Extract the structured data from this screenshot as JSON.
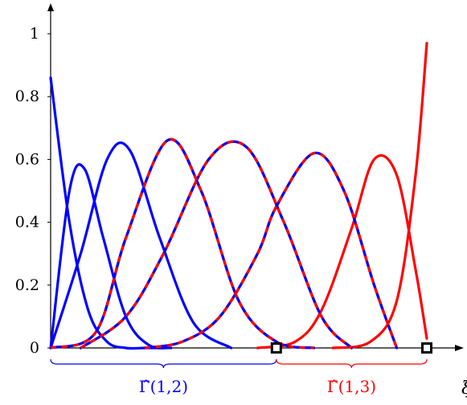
{
  "chart_data": {
    "type": "line",
    "title": "",
    "xlabel": "ξ",
    "ylabel": "",
    "xlim": [
      0,
      1
    ],
    "ylim": [
      0,
      1
    ],
    "y_ticks": [
      "0",
      "0.2",
      "0.4",
      "0.6",
      "0.8",
      "1"
    ],
    "y_tick_values": [
      0,
      0.2,
      0.4,
      0.6,
      0.8,
      1
    ],
    "grid": false,
    "colors": {
      "blue": "#0000ff",
      "red": "#ff0000",
      "axis": "#000000"
    },
    "blue_curves": [
      {
        "x": [
          0.0,
          0.05,
          0.1,
          0.15,
          0.2,
          0.25,
          0.3
        ],
        "y": [
          0.86,
          0.4,
          0.12,
          0.02,
          0.0,
          0.0,
          0.0
        ]
      },
      {
        "x": [
          0.0,
          0.05,
          0.09,
          0.14,
          0.2,
          0.26,
          0.32
        ],
        "y": [
          0.0,
          0.5,
          0.57,
          0.35,
          0.1,
          0.01,
          0.0
        ]
      },
      {
        "x": [
          0.0,
          0.08,
          0.15,
          0.21,
          0.29,
          0.38,
          0.48
        ],
        "y": [
          0.0,
          0.3,
          0.6,
          0.63,
          0.35,
          0.08,
          0.0
        ]
      },
      {
        "x": [
          0.0,
          0.12,
          0.2,
          0.31,
          0.4,
          0.5,
          0.6,
          0.7
        ],
        "y": [
          0.0,
          0.05,
          0.35,
          0.66,
          0.5,
          0.15,
          0.02,
          0.0
        ]
      },
      {
        "x": [
          0.08,
          0.2,
          0.3,
          0.42,
          0.52,
          0.62,
          0.72,
          0.8
        ],
        "y": [
          0.0,
          0.1,
          0.3,
          0.6,
          0.64,
          0.4,
          0.1,
          0.0
        ]
      },
      {
        "x": [
          0.25,
          0.35,
          0.45,
          0.55,
          0.6,
          0.7,
          0.78,
          0.86,
          0.92
        ],
        "y": [
          0.0,
          0.02,
          0.1,
          0.3,
          0.45,
          0.62,
          0.5,
          0.2,
          0.0
        ]
      }
    ],
    "red_curves": [
      {
        "x": [
          0.0,
          0.12,
          0.2,
          0.31,
          0.4,
          0.5,
          0.6,
          0.7
        ],
        "y": [
          0.0,
          0.05,
          0.35,
          0.66,
          0.5,
          0.15,
          0.02,
          0.0
        ]
      },
      {
        "x": [
          0.08,
          0.2,
          0.3,
          0.42,
          0.52,
          0.62,
          0.72,
          0.8
        ],
        "y": [
          0.0,
          0.1,
          0.3,
          0.6,
          0.64,
          0.4,
          0.1,
          0.0
        ]
      },
      {
        "x": [
          0.25,
          0.35,
          0.45,
          0.55,
          0.6,
          0.7,
          0.78,
          0.86,
          0.92
        ],
        "y": [
          0.0,
          0.02,
          0.1,
          0.3,
          0.45,
          0.62,
          0.5,
          0.2,
          0.0
        ]
      },
      {
        "x": [
          0.55,
          0.65,
          0.72,
          0.8,
          0.86,
          0.92,
          0.97,
          1.0
        ],
        "y": [
          0.0,
          0.02,
          0.12,
          0.38,
          0.6,
          0.55,
          0.25,
          0.03
        ]
      },
      {
        "x": [
          0.75,
          0.85,
          0.92,
          0.97,
          1.0
        ],
        "y": [
          0.0,
          0.02,
          0.15,
          0.55,
          0.97
        ]
      }
    ],
    "markers": [
      {
        "x": 0.6,
        "y": 0
      },
      {
        "x": 1.0,
        "y": 0
      }
    ],
    "braces": [
      {
        "label": "Γ̂(1,2)",
        "x_start": 0.0,
        "x_end": 0.6,
        "color": "#0000ff"
      },
      {
        "label": "Γ̂(1,3)",
        "x_start": 0.6,
        "x_end": 1.0,
        "color": "#ff0000"
      }
    ]
  }
}
